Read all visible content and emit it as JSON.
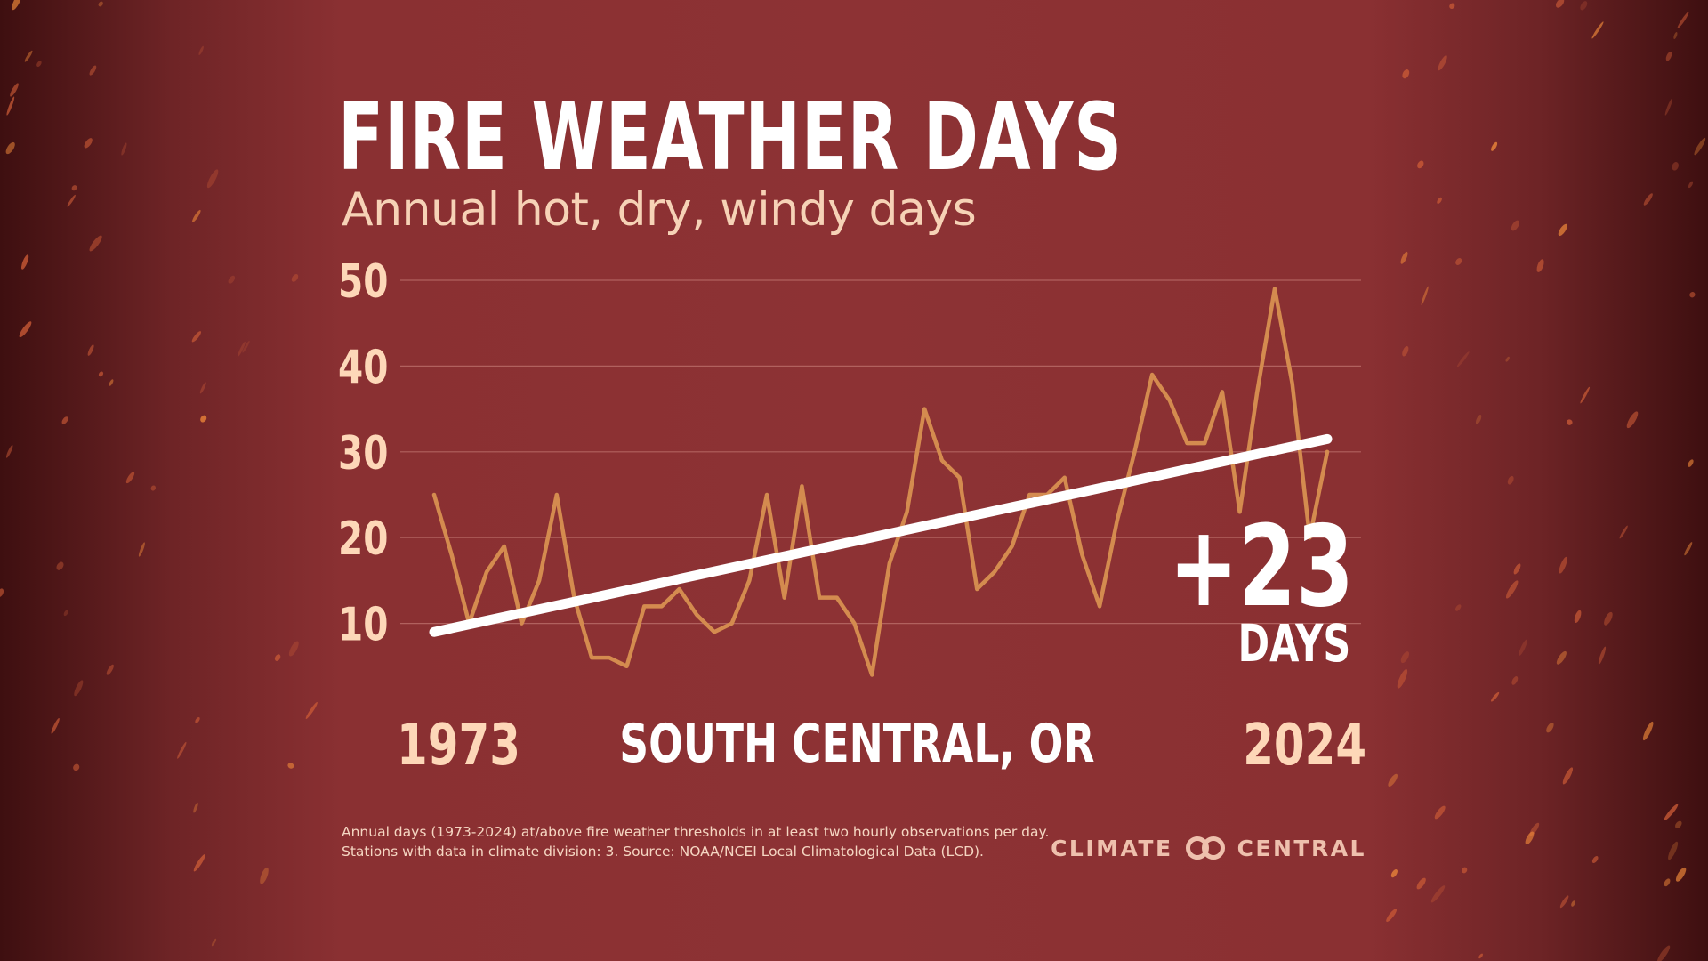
{
  "title": "FIRE WEATHER DAYS",
  "subtitle": "Annual hot, dry, windy days",
  "location": "SOUTH CENTRAL, OR",
  "change": {
    "value": "+23",
    "unit": "DAYS"
  },
  "footnote": {
    "line1": "Annual days (1973-2024) at/above fire weather thresholds in at least two hourly observations per day.",
    "line2": "Stations with data in climate division: 3. Source: NOAA/NCEI Local Climatological Data (LCD)."
  },
  "logo": {
    "left": "CLIMATE",
    "right": "CENTRAL",
    "icon": "linked-rings-icon"
  },
  "colors": {
    "background": "#8d3234",
    "series": "#d48b4f",
    "trend": "#ffffff",
    "tick_labels": "#fdd7b8",
    "gridlines": "#b86a66"
  },
  "chart_data": {
    "type": "line",
    "title": "FIRE WEATHER DAYS",
    "subtitle": "Annual hot, dry, windy days",
    "xlabel": "",
    "ylabel": "",
    "ylim": [
      0,
      50
    ],
    "yticks": [
      10,
      20,
      30,
      40,
      50
    ],
    "x_tick_labels": [
      "1973",
      "2024"
    ],
    "grid": true,
    "x": [
      1973,
      1974,
      1975,
      1976,
      1977,
      1978,
      1979,
      1980,
      1981,
      1982,
      1983,
      1984,
      1985,
      1986,
      1987,
      1988,
      1989,
      1990,
      1991,
      1992,
      1993,
      1994,
      1995,
      1996,
      1997,
      1998,
      1999,
      2000,
      2001,
      2002,
      2003,
      2004,
      2005,
      2006,
      2007,
      2008,
      2009,
      2010,
      2011,
      2012,
      2013,
      2014,
      2015,
      2016,
      2017,
      2018,
      2019,
      2020,
      2021,
      2022,
      2023,
      2024
    ],
    "series": [
      {
        "values": [
          25,
          18,
          10,
          16,
          19,
          10,
          15,
          25,
          13,
          6,
          6,
          5,
          12,
          12,
          14,
          11,
          9,
          10,
          15,
          25,
          13,
          26,
          13,
          13,
          10,
          4,
          17,
          23,
          35,
          29,
          27,
          14,
          16,
          19,
          25,
          25,
          27,
          18,
          12,
          22,
          30,
          39,
          36,
          31,
          31,
          37,
          23,
          37,
          49,
          38,
          20,
          30
        ]
      }
    ],
    "trend": {
      "start_year": 1973,
      "start_value": 9,
      "end_year": 2024,
      "end_value": 31.5
    }
  }
}
